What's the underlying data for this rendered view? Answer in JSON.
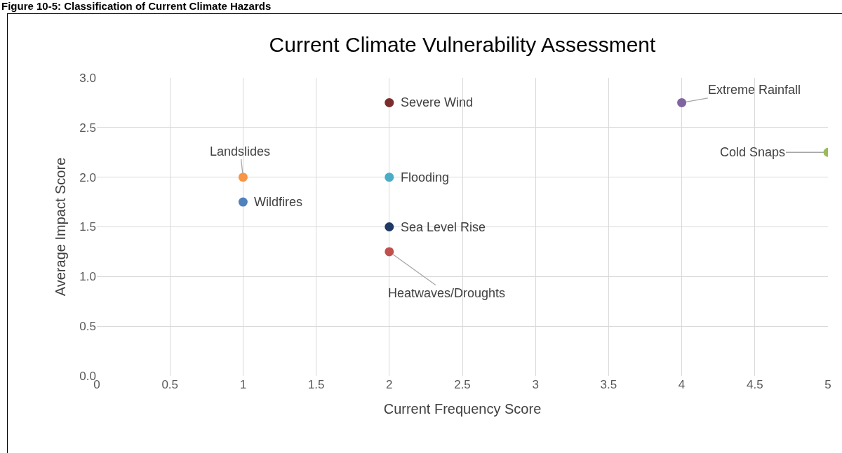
{
  "chart_data": {
    "type": "scatter",
    "title": "Current Climate Vulnerability Assessment",
    "xlabel": "Current Frequency Score",
    "ylabel": "Average Impact Score",
    "annotations": [
      "Figure 10-5: Classification of Current Climate Hazards"
    ],
    "xlim": [
      0,
      5
    ],
    "xticks": [
      0,
      0.5,
      1,
      1.5,
      2,
      2.5,
      3,
      3.5,
      4,
      4.5,
      5
    ],
    "ylim": [
      0,
      3
    ],
    "yticks": [
      {
        "value": 0,
        "label": "0.0"
      },
      {
        "value": 0.5,
        "label": "0.5"
      },
      {
        "value": 1,
        "label": "1.0"
      },
      {
        "value": 1.5,
        "label": "1.5"
      },
      {
        "value": 2,
        "label": "2.0"
      },
      {
        "value": 2.5,
        "label": "2.5"
      },
      {
        "value": 3,
        "label": "3.0"
      }
    ],
    "grid": true,
    "legend": false,
    "marker": "circle",
    "series": [
      {
        "name": "Severe Wind",
        "color": "#7b2c2c",
        "x": [
          2
        ],
        "values": [
          2.75
        ]
      },
      {
        "name": "Extreme Rainfall",
        "color": "#8064a2",
        "x": [
          4
        ],
        "values": [
          2.75
        ]
      },
      {
        "name": "Cold Snaps",
        "color": "#9bbb59",
        "x": [
          5
        ],
        "values": [
          2.25
        ]
      },
      {
        "name": "Landslides",
        "color": "#f79646",
        "x": [
          1
        ],
        "values": [
          2.0
        ]
      },
      {
        "name": "Flooding",
        "color": "#4bacc6",
        "x": [
          2
        ],
        "values": [
          2.0
        ]
      },
      {
        "name": "Wildfires",
        "color": "#4f81bd",
        "x": [
          1
        ],
        "values": [
          1.75
        ]
      },
      {
        "name": "Sea Level Rise",
        "color": "#1f3864",
        "x": [
          2
        ],
        "values": [
          1.5
        ]
      },
      {
        "name": "Heatwaves/Droughts",
        "color": "#c0504d",
        "x": [
          2
        ],
        "values": [
          1.25
        ]
      }
    ]
  }
}
